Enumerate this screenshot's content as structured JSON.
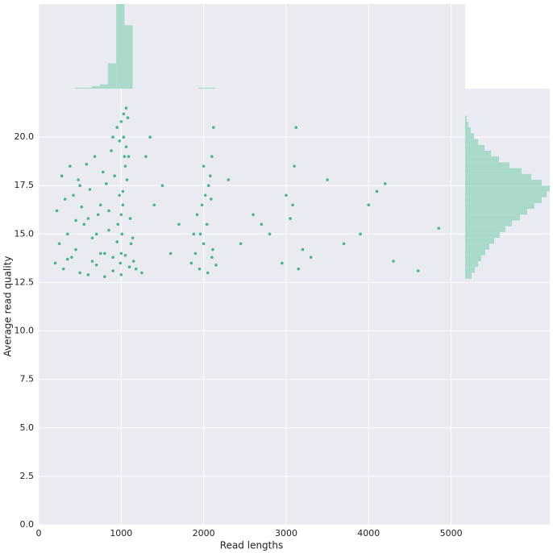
{
  "chart_data": {
    "type": "scatter",
    "x_label": "Read lengths",
    "y_label": "Average read quality",
    "color": "#4cb391",
    "hist_color": "#a9dac9",
    "grid": true,
    "xlim": [
      0,
      5170
    ],
    "ylim": [
      0,
      22.5
    ],
    "xticks": [
      0,
      1000,
      2000,
      3000,
      4000,
      5000
    ],
    "yticks": [
      {
        "value": 0,
        "label": "0.0"
      },
      2.5,
      {
        "value": 5,
        "label": "5.0"
      },
      7.5,
      {
        "value": 10,
        "label": "10.0"
      },
      12.5,
      {
        "value": 15,
        "label": "15.0"
      },
      17.5,
      {
        "value": 20,
        "label": "20.0"
      }
    ],
    "x": [
      200,
      300,
      400,
      500,
      600,
      700,
      800,
      900,
      1000,
      1100,
      250,
      350,
      450,
      550,
      650,
      750,
      850,
      950,
      1050,
      1150,
      220,
      320,
      420,
      520,
      620,
      720,
      820,
      920,
      1020,
      1120,
      280,
      380,
      480,
      580,
      680,
      780,
      880,
      980,
      1060,
      1180,
      900,
      950,
      1000,
      1030,
      1060,
      1080,
      1000,
      1040,
      960,
      1070,
      700,
      750,
      800,
      850,
      900,
      600,
      650,
      500,
      450,
      350,
      1850,
      1900,
      1950,
      2000,
      2050,
      2100,
      2150,
      1880,
      1920,
      1980,
      2020,
      2060,
      2080,
      2100,
      2120,
      2040,
      2000,
      1960,
      2090,
      2110,
      1250,
      1400,
      1600,
      1300,
      1500,
      1700,
      1350,
      2300,
      2450,
      2600,
      2800,
      2950,
      3000,
      3050,
      3100,
      3120,
      3080,
      3150,
      3200,
      3300,
      3500,
      3700,
      3900,
      4100,
      4200,
      4300,
      4000,
      4600,
      4850,
      2700,
      1000,
      1010,
      1020,
      1050,
      990,
      980,
      1030,
      1090,
      1110,
      1140
    ],
    "y": [
      13.5,
      13.2,
      13.8,
      13.0,
      12.9,
      13.4,
      12.8,
      13.1,
      12.9,
      13.3,
      14.5,
      15.0,
      14.2,
      15.5,
      14.8,
      14.0,
      15.2,
      14.6,
      13.9,
      13.6,
      16.2,
      16.8,
      17.0,
      16.4,
      17.3,
      16.0,
      17.6,
      18.0,
      17.2,
      14.5,
      18.0,
      18.5,
      17.8,
      18.6,
      19.0,
      18.2,
      19.3,
      19.8,
      19.5,
      13.2,
      20.0,
      20.5,
      20.8,
      21.2,
      21.5,
      21.0,
      16.0,
      19.0,
      15.5,
      17.8,
      15.0,
      16.5,
      14.0,
      16.2,
      13.8,
      15.8,
      13.6,
      17.5,
      15.7,
      13.7,
      13.5,
      14.0,
      13.2,
      14.5,
      13.0,
      13.8,
      13.4,
      15.0,
      16.0,
      16.5,
      17.0,
      17.5,
      18.0,
      19.0,
      20.5,
      15.5,
      18.5,
      15.0,
      16.8,
      14.2,
      13.0,
      16.5,
      14.0,
      19.0,
      17.5,
      15.5,
      20.0,
      17.8,
      14.5,
      16.0,
      15.0,
      13.5,
      17.0,
      15.8,
      18.5,
      20.5,
      16.5,
      13.2,
      14.2,
      13.8,
      17.8,
      14.5,
      15.0,
      17.2,
      17.6,
      13.6,
      16.5,
      13.1,
      15.3,
      15.5,
      14.0,
      15.0,
      16.5,
      18.5,
      13.5,
      17.0,
      20.0,
      19.0,
      15.8,
      14.8
    ],
    "marginal_x": {
      "bins": [
        440,
        540,
        640,
        740,
        840,
        940,
        1040,
        1140,
        1240,
        1340,
        1440,
        1540,
        1640,
        1740,
        1840,
        1940,
        2040,
        2140
      ],
      "values": [
        1,
        1,
        3,
        5,
        30,
        100,
        75,
        0,
        0,
        0,
        0,
        0,
        0,
        0,
        0,
        1,
        1
      ]
    },
    "marginal_y": {
      "bins": [
        12.7,
        13.0,
        13.3,
        13.6,
        13.9,
        14.2,
        14.5,
        14.8,
        15.1,
        15.4,
        15.7,
        16.0,
        16.3,
        16.6,
        16.9,
        17.2,
        17.5,
        17.8,
        18.1,
        18.4,
        18.7,
        19.0,
        19.3,
        19.6,
        19.9,
        20.2,
        20.5,
        20.8,
        21.1
      ],
      "values": [
        8,
        12,
        16,
        20,
        25,
        30,
        36,
        43,
        50,
        58,
        68,
        77,
        86,
        95,
        101,
        105,
        95,
        82,
        70,
        55,
        42,
        32,
        24,
        16,
        11,
        7,
        4,
        2
      ]
    }
  }
}
